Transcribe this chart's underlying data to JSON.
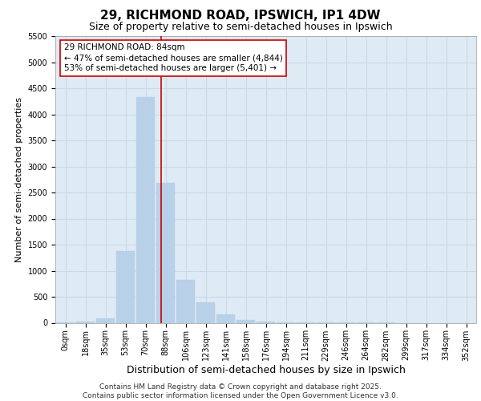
{
  "title": "29, RICHMOND ROAD, IPSWICH, IP1 4DW",
  "subtitle": "Size of property relative to semi-detached houses in Ipswich",
  "xlabel": "Distribution of semi-detached houses by size in Ipswich",
  "ylabel": "Number of semi-detached properties",
  "bin_labels": [
    "0sqm",
    "18sqm",
    "35sqm",
    "53sqm",
    "70sqm",
    "88sqm",
    "106sqm",
    "123sqm",
    "141sqm",
    "158sqm",
    "176sqm",
    "194sqm",
    "211sqm",
    "229sqm",
    "246sqm",
    "264sqm",
    "282sqm",
    "299sqm",
    "317sqm",
    "334sqm",
    "352sqm"
  ],
  "bar_values": [
    5,
    20,
    80,
    1380,
    4330,
    2680,
    830,
    390,
    160,
    60,
    25,
    10,
    5,
    3,
    2,
    1,
    1,
    0,
    0,
    0,
    0
  ],
  "bar_color": "#b8d0e8",
  "bar_edge_color": "#b8d0e8",
  "grid_color": "#c8daea",
  "background_color": "#deeaf4",
  "annotation_line_color": "#cc0000",
  "annotation_box_text": "29 RICHMOND ROAD: 84sqm\n← 47% of semi-detached houses are smaller (4,844)\n53% of semi-detached houses are larger (5,401) →",
  "annotation_box_color": "#ffffff",
  "annotation_box_edge_color": "#cc0000",
  "ylim": [
    0,
    5500
  ],
  "yticks": [
    0,
    500,
    1000,
    1500,
    2000,
    2500,
    3000,
    3500,
    4000,
    4500,
    5000,
    5500
  ],
  "footer_line1": "Contains HM Land Registry data © Crown copyright and database right 2025.",
  "footer_line2": "Contains public sector information licensed under the Open Government Licence v3.0.",
  "title_fontsize": 11,
  "subtitle_fontsize": 9,
  "xlabel_fontsize": 9,
  "ylabel_fontsize": 8,
  "tick_fontsize": 7,
  "annotation_fontsize": 7.5,
  "footer_fontsize": 6.5
}
